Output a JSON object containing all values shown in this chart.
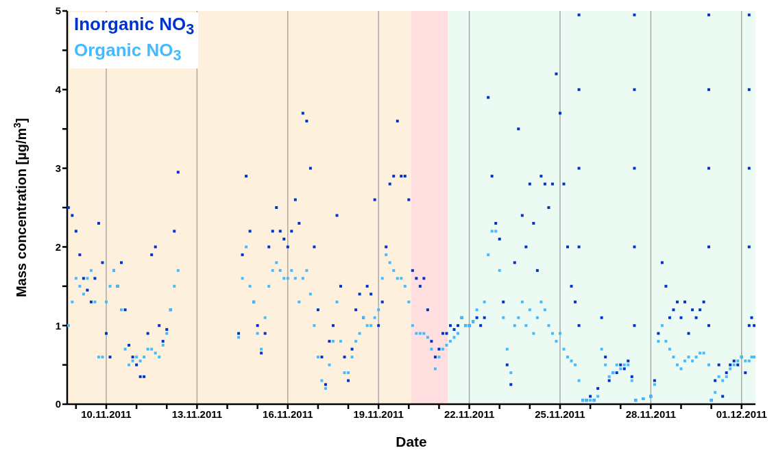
{
  "chart_data": {
    "type": "scatter",
    "xlabel": "Date",
    "ylabel": "Mass concentration [µg/m$^{3}$]",
    "marker": "square",
    "grid": "x",
    "legend": "top left",
    "xlim": [
      "2011-11-08T17:00",
      "2011-12-01T11:00"
    ],
    "xticks": [
      {
        "value": "2011-11-09",
        "label": null
      },
      {
        "value": "2011-11-10",
        "label": "10.11.2011"
      },
      {
        "value": "2011-11-11",
        "label": null
      },
      {
        "value": "2011-11-12",
        "label": null
      },
      {
        "value": "2011-11-13",
        "label": "13.11.2011"
      },
      {
        "value": "2011-11-14",
        "label": null
      },
      {
        "value": "2011-11-15",
        "label": null
      },
      {
        "value": "2011-11-16",
        "label": "16.11.2011"
      },
      {
        "value": "2011-11-17",
        "label": null
      },
      {
        "value": "2011-11-18",
        "label": null
      },
      {
        "value": "2011-11-19",
        "label": "19.11.2011"
      },
      {
        "value": "2011-11-20",
        "label": null
      },
      {
        "value": "2011-11-21",
        "label": null
      },
      {
        "value": "2011-11-22",
        "label": "22.11.2011"
      },
      {
        "value": "2011-11-23",
        "label": null
      },
      {
        "value": "2011-11-24",
        "label": null
      },
      {
        "value": "2011-11-25",
        "label": "25.11.2011"
      },
      {
        "value": "2011-11-26",
        "label": null
      },
      {
        "value": "2011-11-27",
        "label": null
      },
      {
        "value": "2011-11-28",
        "label": "28.11.2011"
      },
      {
        "value": "2011-11-29",
        "label": null
      },
      {
        "value": "2011-11-30",
        "label": null
      },
      {
        "value": "2011-12-01",
        "label": "01.12.2011"
      }
    ],
    "ylim": [
      0,
      5
    ],
    "yticks": [
      0,
      {
        "value": 0.5,
        "label": null
      },
      1,
      {
        "value": 1.5,
        "label": null
      },
      2,
      {
        "value": 2.5,
        "label": null
      },
      3,
      {
        "value": 3.5,
        "label": null
      },
      4,
      {
        "value": 4.5,
        "label": null
      },
      5
    ],
    "bands": [
      {
        "axis": "x",
        "from": "2011-11-08T17:00",
        "to": "2011-11-20T02:00",
        "color": "#fdf1de"
      },
      {
        "axis": "x",
        "from": "2011-11-20T02:00",
        "to": "2011-11-21T07:00",
        "color": "#ffdfe0"
      },
      {
        "axis": "x",
        "from": "2011-11-21T07:00",
        "to": "2011-12-01T11:00",
        "color": "#ebfaf2"
      }
    ],
    "series": [
      {
        "name": "Inorganic NO$_{3}$",
        "color": "#0033cc",
        "x": [
          "2011-11-08T18:00",
          "2011-11-08T21:00",
          "2011-11-09T00:00",
          "2011-11-09T03:00",
          "2011-11-09T06:00",
          "2011-11-09T09:00",
          "2011-11-09T12:00",
          "2011-11-09T15:00",
          "2011-11-09T18:00",
          "2011-11-09T21:00",
          "2011-11-10T00:00",
          "2011-11-10T03:00",
          "2011-11-10T06:00",
          "2011-11-10T09:00",
          "2011-11-10T12:00",
          "2011-11-10T15:00",
          "2011-11-10T18:00",
          "2011-11-10T21:00",
          "2011-11-11T00:00",
          "2011-11-11T03:00",
          "2011-11-11T06:00",
          "2011-11-11T09:00",
          "2011-11-11T12:00",
          "2011-11-11T15:00",
          "2011-11-11T18:00",
          "2011-11-11T21:00",
          "2011-11-12T00:00",
          "2011-11-12T03:00",
          "2011-11-12T06:00",
          "2011-11-12T09:00",
          "2011-11-13T12:00",
          "2011-11-14T09:00",
          "2011-11-14T12:00",
          "2011-11-14T15:00",
          "2011-11-14T18:00",
          "2011-11-14T21:00",
          "2011-11-15T00:00",
          "2011-11-15T03:00",
          "2011-11-15T06:00",
          "2011-11-15T09:00",
          "2011-11-15T12:00",
          "2011-11-15T15:00",
          "2011-11-15T18:00",
          "2011-11-15T21:00",
          "2011-11-16T00:00",
          "2011-11-16T03:00",
          "2011-11-16T06:00",
          "2011-11-16T09:00",
          "2011-11-16T12:00",
          "2011-11-16T15:00",
          "2011-11-16T18:00",
          "2011-11-16T21:00",
          "2011-11-17T00:00",
          "2011-11-17T03:00",
          "2011-11-17T06:00",
          "2011-11-17T09:00",
          "2011-11-17T12:00",
          "2011-11-17T15:00",
          "2011-11-17T18:00",
          "2011-11-17T21:00",
          "2011-11-18T00:00",
          "2011-11-18T03:00",
          "2011-11-18T06:00",
          "2011-11-18T09:00",
          "2011-11-18T12:00",
          "2011-11-18T15:00",
          "2011-11-18T18:00",
          "2011-11-18T21:00",
          "2011-11-19T00:00",
          "2011-11-19T03:00",
          "2011-11-19T06:00",
          "2011-11-19T09:00",
          "2011-11-19T12:00",
          "2011-11-19T15:00",
          "2011-11-19T18:00",
          "2011-11-19T21:00",
          "2011-11-20T00:00",
          "2011-11-20T03:00",
          "2011-11-20T06:00",
          "2011-11-20T09:00",
          "2011-11-20T12:00",
          "2011-11-20T15:00",
          "2011-11-20T18:00",
          "2011-11-20T21:00",
          "2011-11-21T00:00",
          "2011-11-21T03:00",
          "2011-11-21T06:00",
          "2011-11-21T09:00",
          "2011-11-21T12:00",
          "2011-11-21T15:00",
          "2011-11-21T18:00",
          "2011-11-21T21:00",
          "2011-11-22T00:00",
          "2011-11-22T03:00",
          "2011-11-22T06:00",
          "2011-11-22T09:00",
          "2011-11-22T12:00",
          "2011-11-22T15:00",
          "2011-11-22T18:00",
          "2011-11-22T21:00",
          "2011-11-23T00:00",
          "2011-11-23T03:00",
          "2011-11-23T06:00",
          "2011-11-23T09:00",
          "2011-11-23T12:00",
          "2011-11-23T15:00",
          "2011-11-23T18:00",
          "2011-11-23T21:00",
          "2011-11-24T00:00",
          "2011-11-24T03:00",
          "2011-11-24T06:00",
          "2011-11-24T09:00",
          "2011-11-24T12:00",
          "2011-11-24T15:00",
          "2011-11-24T18:00",
          "2011-11-24T21:00",
          "2011-11-25T00:00",
          "2011-11-25T03:00",
          "2011-11-25T06:00",
          "2011-11-25T09:00",
          "2011-11-25T12:00",
          "2011-11-25T15:00",
          "2011-11-25T15:00",
          "2011-11-25T15:00",
          "2011-11-25T15:00",
          "2011-11-25T15:00",
          "2011-11-25T18:00",
          "2011-11-25T21:00",
          "2011-11-26T00:00",
          "2011-11-26T03:00",
          "2011-11-26T06:00",
          "2011-11-26T09:00",
          "2011-11-26T12:00",
          "2011-11-26T15:00",
          "2011-11-26T18:00",
          "2011-11-26T21:00",
          "2011-11-27T00:00",
          "2011-11-27T03:00",
          "2011-11-27T06:00",
          "2011-11-27T09:00",
          "2011-11-27T11:00",
          "2011-11-27T11:00",
          "2011-11-27T11:00",
          "2011-11-27T11:00",
          "2011-11-27T11:00",
          "2011-11-27T12:00",
          "2011-11-27T18:00",
          "2011-11-28T00:00",
          "2011-11-28T03:00",
          "2011-11-28T06:00",
          "2011-11-28T09:00",
          "2011-11-28T12:00",
          "2011-11-28T15:00",
          "2011-11-28T18:00",
          "2011-11-28T21:00",
          "2011-11-29T00:00",
          "2011-11-29T03:00",
          "2011-11-29T06:00",
          "2011-11-29T09:00",
          "2011-11-29T12:00",
          "2011-11-29T15:00",
          "2011-11-29T18:00",
          "2011-11-29T22:00",
          "2011-11-29T22:00",
          "2011-11-29T22:00",
          "2011-11-29T22:00",
          "2011-11-29T22:00",
          "2011-11-30T00:00",
          "2011-11-30T03:00",
          "2011-11-30T06:00",
          "2011-11-30T09:00",
          "2011-11-30T12:00",
          "2011-11-30T15:00",
          "2011-11-30T18:00",
          "2011-11-30T21:00",
          "2011-12-01T00:00",
          "2011-12-01T03:00",
          "2011-12-01T06:00",
          "2011-12-01T06:00",
          "2011-12-01T06:00",
          "2011-12-01T06:00",
          "2011-12-01T06:00",
          "2011-12-01T08:00",
          "2011-12-01T10:00"
        ],
        "values": [
          2.5,
          2.4,
          2.2,
          1.9,
          1.6,
          1.45,
          1.3,
          1.6,
          2.3,
          1.8,
          0.9,
          0.6,
          1.7,
          1.5,
          1.8,
          1.2,
          0.75,
          0.6,
          0.5,
          0.35,
          0.35,
          0.9,
          1.9,
          2.0,
          1.0,
          0.8,
          0.95,
          1.2,
          2.2,
          2.95,
          null,
          0.9,
          1.9,
          2.9,
          2.2,
          1.3,
          1.0,
          0.65,
          0.9,
          2.0,
          2.2,
          2.5,
          2.2,
          2.1,
          2.0,
          2.2,
          2.6,
          2.3,
          3.7,
          3.6,
          3.0,
          2.0,
          1.2,
          0.6,
          0.25,
          0.8,
          1.0,
          2.4,
          1.5,
          0.6,
          0.3,
          0.7,
          1.2,
          1.4,
          1.1,
          1.5,
          1.4,
          2.6,
          1.0,
          1.3,
          2.0,
          2.8,
          2.9,
          3.6,
          2.9,
          2.9,
          2.6,
          1.7,
          1.6,
          1.5,
          1.6,
          1.2,
          0.8,
          0.6,
          0.7,
          0.9,
          0.9,
          1.0,
          0.95,
          1.0,
          1.1,
          1.0,
          1.0,
          1.05,
          1.1,
          1.0,
          1.1,
          3.9,
          2.9,
          2.3,
          2.1,
          1.3,
          0.5,
          0.25,
          1.8,
          3.5,
          2.4,
          2.0,
          2.8,
          2.3,
          1.7,
          2.9,
          2.8,
          2.5,
          2.8,
          4.2,
          3.7,
          2.8,
          2.0,
          1.5,
          1.3,
          1,
          2,
          3,
          4,
          4.95,
          0.05,
          0.05,
          0.1,
          0.05,
          0.2,
          1.1,
          0.6,
          0.3,
          0.4,
          0.4,
          0.5,
          0.45,
          0.55,
          0.35,
          1,
          2,
          3,
          4,
          4.95,
          0.05,
          0.07,
          0.1,
          0.3,
          0.9,
          1.8,
          1.5,
          1.1,
          1.2,
          1.3,
          1.1,
          1.3,
          0.9,
          1.2,
          1.1,
          1.2,
          1.3,
          1,
          2,
          3,
          4,
          4.95,
          0.05,
          0.3,
          0.5,
          0.1,
          0.4,
          0.5,
          0.55,
          0.5,
          0.6,
          0.4,
          1,
          2,
          3,
          4,
          4.95,
          1.1,
          1.0
        ]
      },
      {
        "name": "Organic NO$_{3}$",
        "color": "#44bbff",
        "x": [
          "2011-11-08T18:00",
          "2011-11-08T21:00",
          "2011-11-09T00:00",
          "2011-11-09T03:00",
          "2011-11-09T06:00",
          "2011-11-09T09:00",
          "2011-11-09T12:00",
          "2011-11-09T15:00",
          "2011-11-09T18:00",
          "2011-11-09T21:00",
          "2011-11-10T00:00",
          "2011-11-10T03:00",
          "2011-11-10T06:00",
          "2011-11-10T09:00",
          "2011-11-10T12:00",
          "2011-11-10T15:00",
          "2011-11-10T18:00",
          "2011-11-10T21:00",
          "2011-11-11T00:00",
          "2011-11-11T03:00",
          "2011-11-11T06:00",
          "2011-11-11T09:00",
          "2011-11-11T12:00",
          "2011-11-11T15:00",
          "2011-11-11T18:00",
          "2011-11-11T21:00",
          "2011-11-12T00:00",
          "2011-11-12T03:00",
          "2011-11-12T06:00",
          "2011-11-12T09:00",
          "2011-11-13T12:00",
          "2011-11-14T09:00",
          "2011-11-14T12:00",
          "2011-11-14T15:00",
          "2011-11-14T18:00",
          "2011-11-14T21:00",
          "2011-11-15T00:00",
          "2011-11-15T03:00",
          "2011-11-15T06:00",
          "2011-11-15T09:00",
          "2011-11-15T12:00",
          "2011-11-15T15:00",
          "2011-11-15T18:00",
          "2011-11-15T21:00",
          "2011-11-16T00:00",
          "2011-11-16T03:00",
          "2011-11-16T06:00",
          "2011-11-16T09:00",
          "2011-11-16T12:00",
          "2011-11-16T15:00",
          "2011-11-16T18:00",
          "2011-11-16T21:00",
          "2011-11-17T00:00",
          "2011-11-17T03:00",
          "2011-11-17T06:00",
          "2011-11-17T09:00",
          "2011-11-17T12:00",
          "2011-11-17T15:00",
          "2011-11-17T18:00",
          "2011-11-17T21:00",
          "2011-11-18T00:00",
          "2011-11-18T03:00",
          "2011-11-18T06:00",
          "2011-11-18T09:00",
          "2011-11-18T12:00",
          "2011-11-18T15:00",
          "2011-11-18T18:00",
          "2011-11-18T21:00",
          "2011-11-19T00:00",
          "2011-11-19T03:00",
          "2011-11-19T06:00",
          "2011-11-19T09:00",
          "2011-11-19T12:00",
          "2011-11-19T15:00",
          "2011-11-19T18:00",
          "2011-11-19T21:00",
          "2011-11-20T00:00",
          "2011-11-20T03:00",
          "2011-11-20T06:00",
          "2011-11-20T09:00",
          "2011-11-20T12:00",
          "2011-11-20T15:00",
          "2011-11-20T18:00",
          "2011-11-20T21:00",
          "2011-11-21T00:00",
          "2011-11-21T03:00",
          "2011-11-21T06:00",
          "2011-11-21T09:00",
          "2011-11-21T12:00",
          "2011-11-21T15:00",
          "2011-11-21T18:00",
          "2011-11-21T21:00",
          "2011-11-22T00:00",
          "2011-11-22T03:00",
          "2011-11-22T06:00",
          "2011-11-22T12:00",
          "2011-11-22T15:00",
          "2011-11-22T18:00",
          "2011-11-22T21:00",
          "2011-11-23T00:00",
          "2011-11-23T03:00",
          "2011-11-23T06:00",
          "2011-11-23T09:00",
          "2011-11-23T12:00",
          "2011-11-23T15:00",
          "2011-11-23T18:00",
          "2011-11-23T21:00",
          "2011-11-24T00:00",
          "2011-11-24T03:00",
          "2011-11-24T06:00",
          "2011-11-24T09:00",
          "2011-11-24T12:00",
          "2011-11-24T15:00",
          "2011-11-24T18:00",
          "2011-11-24T21:00",
          "2011-11-25T00:00",
          "2011-11-25T03:00",
          "2011-11-25T06:00",
          "2011-11-25T09:00",
          "2011-11-25T12:00",
          "2011-11-25T15:00",
          "2011-11-25T18:00",
          "2011-11-25T21:00",
          "2011-11-26T00:00",
          "2011-11-26T03:00",
          "2011-11-26T06:00",
          "2011-11-26T09:00",
          "2011-11-26T12:00",
          "2011-11-26T15:00",
          "2011-11-26T18:00",
          "2011-11-26T21:00",
          "2011-11-27T00:00",
          "2011-11-27T03:00",
          "2011-11-27T06:00",
          "2011-11-27T09:00",
          "2011-11-27T12:00",
          "2011-11-27T18:00",
          "2011-11-28T00:00",
          "2011-11-28T03:00",
          "2011-11-28T06:00",
          "2011-11-28T09:00",
          "2011-11-28T12:00",
          "2011-11-28T15:00",
          "2011-11-28T18:00",
          "2011-11-28T21:00",
          "2011-11-29T00:00",
          "2011-11-29T03:00",
          "2011-11-29T06:00",
          "2011-11-29T09:00",
          "2011-11-29T12:00",
          "2011-11-29T15:00",
          "2011-11-29T18:00",
          "2011-11-29T22:00",
          "2011-11-30T00:00",
          "2011-11-30T03:00",
          "2011-11-30T06:00",
          "2011-11-30T09:00",
          "2011-11-30T12:00",
          "2011-11-30T15:00",
          "2011-11-30T18:00",
          "2011-11-30T21:00",
          "2011-12-01T00:00",
          "2011-12-01T03:00",
          "2011-12-01T06:00",
          "2011-12-01T08:00",
          "2011-12-01T10:00"
        ],
        "values": [
          1.0,
          1.3,
          1.6,
          1.5,
          1.4,
          1.6,
          1.7,
          1.3,
          0.6,
          0.6,
          1.3,
          1.5,
          1.7,
          1.5,
          1.2,
          0.7,
          0.5,
          0.55,
          0.6,
          0.55,
          0.6,
          0.7,
          0.7,
          0.65,
          0.6,
          0.75,
          0.9,
          1.2,
          1.5,
          1.7,
          null,
          0.85,
          1.6,
          2.0,
          1.5,
          1.3,
          0.9,
          0.7,
          1.1,
          1.5,
          1.7,
          1.8,
          1.7,
          1.6,
          1.6,
          1.7,
          1.6,
          1.3,
          1.6,
          1.7,
          1.4,
          1.0,
          0.6,
          0.3,
          0.2,
          0.5,
          0.8,
          1.3,
          0.8,
          0.4,
          0.4,
          0.6,
          0.8,
          0.9,
          1.1,
          1.0,
          1.0,
          1.1,
          1.2,
          1.6,
          1.9,
          1.8,
          1.7,
          1.6,
          1.6,
          1.5,
          1.3,
          1.0,
          0.9,
          0.9,
          0.9,
          0.85,
          0.7,
          0.45,
          0.6,
          0.7,
          0.75,
          0.8,
          0.85,
          0.9,
          1.1,
          1.0,
          1.0,
          1.05,
          1.2,
          1.3,
          1.9,
          2.2,
          2.2,
          1.7,
          1.1,
          0.7,
          0.4,
          1.0,
          1.1,
          1.3,
          1.0,
          1.2,
          0.9,
          1.1,
          1.3,
          1.2,
          1.0,
          0.9,
          0.8,
          0.9,
          0.7,
          0.6,
          0.55,
          0.5,
          0.3,
          0.05,
          0.05,
          0.05,
          0.05,
          0.1,
          0.7,
          0.5,
          0.35,
          0.4,
          0.5,
          0.45,
          0.5,
          0.5,
          0.3,
          0.05,
          0.07,
          0.1,
          0.25,
          0.8,
          1.0,
          0.8,
          0.7,
          0.6,
          0.5,
          0.45,
          0.55,
          0.6,
          0.55,
          0.6,
          0.65,
          0.65,
          0.5,
          0.05,
          0.15,
          0.35,
          0.3,
          0.35,
          0.45,
          0.5,
          0.55,
          0.6,
          0.55,
          0.55,
          0.6,
          0.6
        ]
      }
    ]
  }
}
